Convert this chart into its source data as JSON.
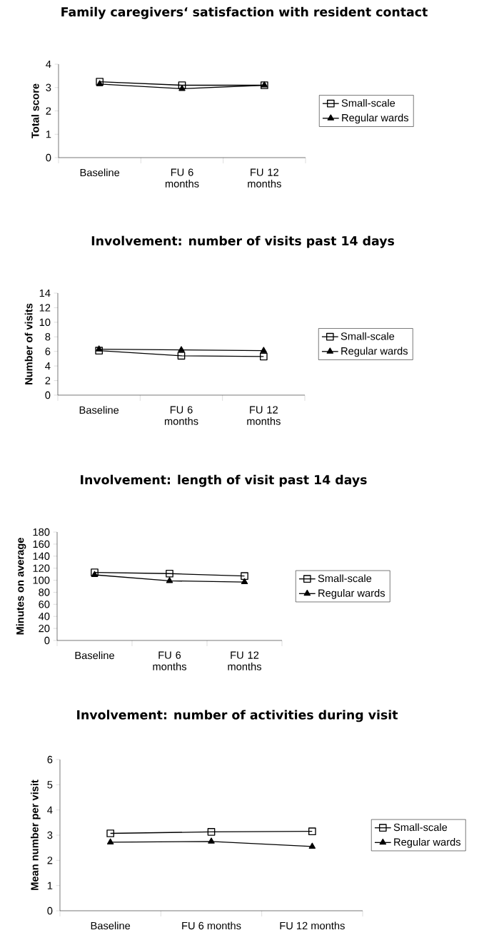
{
  "chart_data": [
    {
      "type": "line",
      "title": "Family caregivers‘ satisfaction with resident contact",
      "ylabel": "Total score",
      "categories": [
        "Baseline",
        "FU 6 months",
        "FU 12 months"
      ],
      "ylim": [
        0,
        4
      ],
      "yticks": [
        0,
        1,
        2,
        3,
        4
      ],
      "legend": "right",
      "series": [
        {
          "name": "Small-scale",
          "color": "#000000",
          "marker": "square",
          "values": [
            3.25,
            3.1,
            3.1
          ]
        },
        {
          "name": "Regular wards",
          "color": "#000000",
          "marker": "triangle",
          "values": [
            3.15,
            2.95,
            3.1
          ]
        }
      ]
    },
    {
      "type": "line",
      "title": "Involvement: number of visits past 14 days",
      "ylabel": "Number of visits",
      "categories": [
        "Baseline",
        "FU 6 months",
        "FU 12 months"
      ],
      "ylim": [
        0,
        14
      ],
      "yticks": [
        0,
        2,
        4,
        6,
        8,
        10,
        12,
        14
      ],
      "legend": "right",
      "series": [
        {
          "name": "Small-scale",
          "color": "#000000",
          "marker": "square",
          "values": [
            6.1,
            5.4,
            5.3
          ]
        },
        {
          "name": "Regular wards",
          "color": "#000000",
          "marker": "triangle",
          "values": [
            6.3,
            6.2,
            6.1
          ]
        }
      ]
    },
    {
      "type": "line",
      "title": "Involvement: length of visit past 14 days",
      "ylabel": "Minutes on average",
      "categories": [
        "Baseline",
        "FU 6 months",
        "FU 12 months"
      ],
      "ylim": [
        0,
        180
      ],
      "yticks": [
        0,
        20,
        40,
        60,
        80,
        100,
        120,
        140,
        160,
        180
      ],
      "legend": "right",
      "series": [
        {
          "name": "Small-scale",
          "color": "#000000",
          "marker": "square",
          "values": [
            113,
            111,
            107
          ]
        },
        {
          "name": "Regular wards",
          "color": "#000000",
          "marker": "triangle",
          "values": [
            109,
            99,
            97
          ]
        }
      ]
    },
    {
      "type": "line",
      "title": "Involvement: number of activities during visit",
      "ylabel": "Mean number per visit",
      "categories": [
        "Baseline",
        "FU 6 months",
        "FU 12 months"
      ],
      "ylim": [
        0,
        6
      ],
      "yticks": [
        0,
        1,
        2,
        3,
        4,
        5,
        6
      ],
      "legend": "right",
      "series": [
        {
          "name": "Small-scale",
          "color": "#000000",
          "marker": "square",
          "values": [
            3.07,
            3.13,
            3.15
          ]
        },
        {
          "name": "Regular wards",
          "color": "#000000",
          "marker": "triangle",
          "values": [
            2.72,
            2.75,
            2.55
          ]
        }
      ]
    }
  ]
}
